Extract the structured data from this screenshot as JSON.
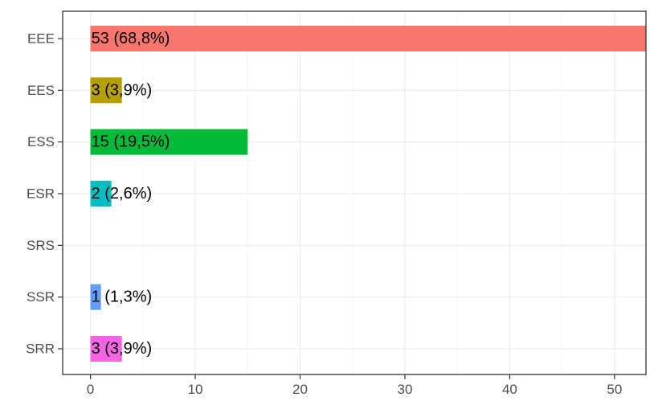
{
  "chart_data": {
    "type": "bar",
    "orientation": "horizontal",
    "categories": [
      "EEE",
      "EES",
      "ESS",
      "ESR",
      "SRS",
      "SSR",
      "SRR"
    ],
    "values": [
      53,
      3,
      15,
      2,
      0,
      1,
      3
    ],
    "data_labels": [
      "53 (68,8%)",
      "3 (3,9%)",
      "15 (19,5%)",
      "2 (2,6%)",
      "",
      "1 (1,3%)",
      "3 (3,9%)"
    ],
    "colors": [
      "#F8766D",
      "#B79F00",
      "#00BA38",
      "#00BFC4",
      "#00BFC4",
      "#619CFF",
      "#F564E3"
    ],
    "xlim": [
      -2.65,
      53
    ],
    "x_ticks": [
      0,
      10,
      20,
      30,
      40,
      50
    ],
    "x_tick_labels": [
      "0",
      "10",
      "20",
      "30",
      "40",
      "50"
    ],
    "grid": true,
    "legend": "none",
    "title": "",
    "xlabel": "",
    "ylabel": ""
  }
}
